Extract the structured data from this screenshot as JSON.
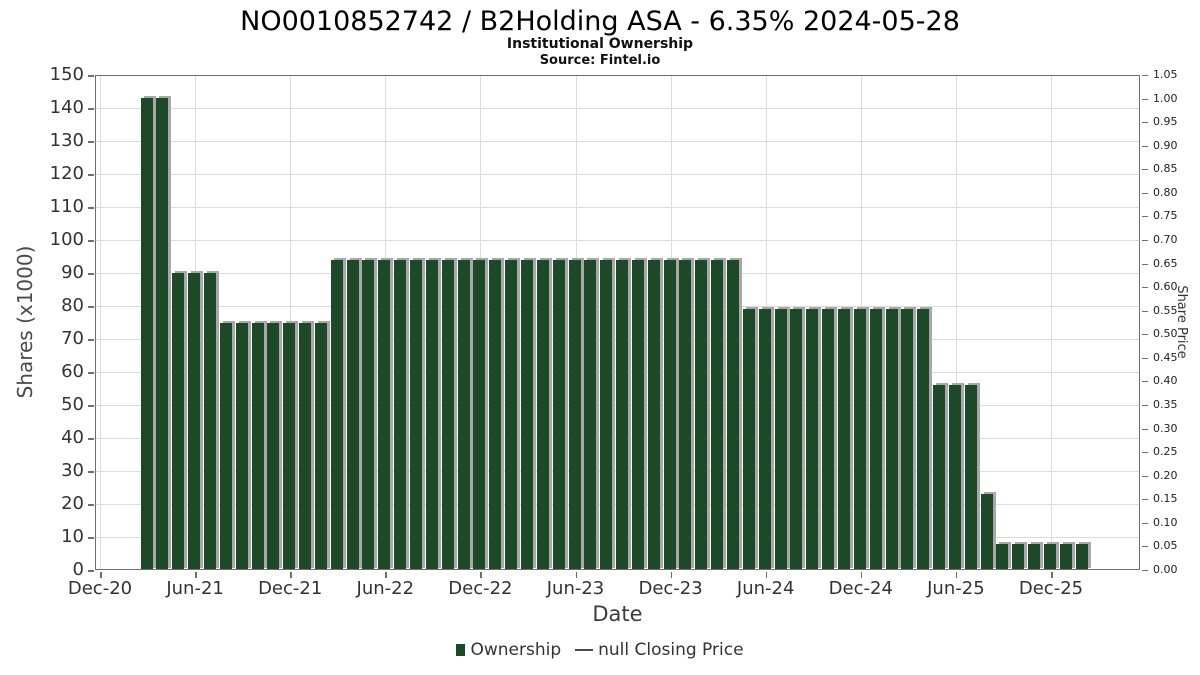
{
  "header": {
    "title": "NO0010852742 / B2Holding ASA - 6.35% 2024-05-28",
    "subtitle": "Institutional Ownership",
    "source": "Source: Fintel.io"
  },
  "chart_data": {
    "type": "bar",
    "title": "NO0010852742 / B2Holding ASA - 6.35% 2024-05-28",
    "subtitle": "Institutional Ownership",
    "source": "Source: Fintel.io",
    "xlabel": "Date",
    "ylabel": "Shares (x1000)",
    "y2label": "Share Price",
    "ylim": [
      0,
      150
    ],
    "y2lim": [
      0,
      1.05
    ],
    "yticks_left": [
      0,
      10,
      20,
      30,
      40,
      50,
      60,
      70,
      80,
      90,
      100,
      110,
      120,
      130,
      140,
      150
    ],
    "yticks_right": [
      0,
      0.05,
      0.1,
      0.15,
      0.2,
      0.25,
      0.3,
      0.35,
      0.4,
      0.45,
      0.5,
      0.55,
      0.6,
      0.65,
      0.7,
      0.75,
      0.8,
      0.85,
      0.9,
      0.95,
      1.0,
      1.05
    ],
    "xticks": [
      "Dec-20",
      "Jun-21",
      "Dec-21",
      "Jun-22",
      "Dec-22",
      "Jun-23",
      "Dec-23",
      "Jun-24",
      "Dec-24",
      "Jun-25",
      "Dec-25"
    ],
    "grid": true,
    "legend_position": "bottom",
    "legend": [
      {
        "label": "Ownership",
        "type": "bar"
      },
      {
        "label": "null Closing Price",
        "type": "line"
      }
    ],
    "colors": {
      "bar": "#1e4929",
      "bar_shadow": "#a8a8a8",
      "grid": "#dcdcdc",
      "spine": "#6f6f6f",
      "text": "#333333"
    },
    "categories": [
      "Mar-21",
      "Apr-21",
      "May-21",
      "Jun-21",
      "Jul-21",
      "Aug-21",
      "Sep-21",
      "Oct-21",
      "Nov-21",
      "Dec-21",
      "Jan-22",
      "Feb-22",
      "Mar-22",
      "Apr-22",
      "May-22",
      "Jun-22",
      "Jul-22",
      "Aug-22",
      "Sep-22",
      "Oct-22",
      "Nov-22",
      "Dec-22",
      "Jan-23",
      "Feb-23",
      "Mar-23",
      "Apr-23",
      "May-23",
      "Jun-23",
      "Jul-23",
      "Aug-23",
      "Sep-23",
      "Oct-23",
      "Nov-23",
      "Dec-23",
      "Jan-24",
      "Feb-24",
      "Mar-24",
      "Apr-24",
      "May-24",
      "Jun-24",
      "Jul-24",
      "Aug-24",
      "Sep-24",
      "Oct-24",
      "Nov-24",
      "Dec-24",
      "Jan-25",
      "Feb-25",
      "Mar-25",
      "Apr-25",
      "May-25",
      "Jun-25",
      "Jul-25",
      "Aug-25",
      "Sep-25",
      "Oct-25",
      "Nov-25",
      "Dec-25",
      "Jan-26",
      "Feb-26"
    ],
    "values": [
      143,
      143,
      90,
      90,
      90,
      75,
      75,
      75,
      75,
      75,
      75,
      75,
      94,
      94,
      94,
      94,
      94,
      94,
      94,
      94,
      94,
      94,
      94,
      94,
      94,
      94,
      94,
      94,
      94,
      94,
      94,
      94,
      94,
      94,
      94,
      94,
      94,
      94,
      79,
      79,
      79,
      79,
      79,
      79,
      79,
      79,
      79,
      79,
      79,
      79,
      56,
      56,
      56,
      23,
      8,
      8,
      8,
      8,
      8,
      8
    ]
  }
}
